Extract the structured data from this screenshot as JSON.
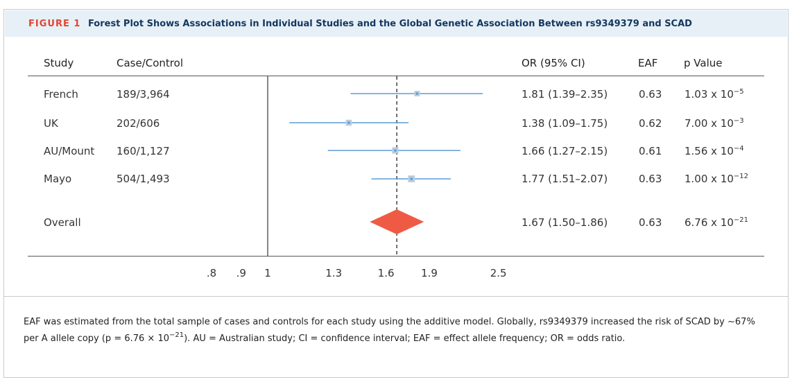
{
  "figure": {
    "label": "FIGURE 1",
    "title": "Forest Plot Shows Associations in Individual Studies and the Global Genetic Association Between rs9349379 and SCAD"
  },
  "columns": {
    "study": "Study",
    "case_control": "Case/Control",
    "or_ci": "OR (95% CI)",
    "eaf": "EAF",
    "p_value": "p Value"
  },
  "rows": [
    {
      "study": "French",
      "case_control": "189/3,964",
      "or_text": "1.81 (1.39–2.35)",
      "eaf": "0.63",
      "p_base": "1.03 x 10",
      "p_exp": "−5"
    },
    {
      "study": "UK",
      "case_control": "202/606",
      "or_text": "1.38 (1.09–1.75)",
      "eaf": "0.62",
      "p_base": "7.00 x 10",
      "p_exp": "−3"
    },
    {
      "study": "AU/Mount",
      "case_control": "160/1,127",
      "or_text": "1.66 (1.27–2.15)",
      "eaf": "0.61",
      "p_base": "1.56 x 10",
      "p_exp": "−4"
    },
    {
      "study": "Mayo",
      "case_control": "504/1,493",
      "or_text": "1.77 (1.51–2.07)",
      "eaf": "0.63",
      "p_base": "1.00 x 10",
      "p_exp": "−12"
    },
    {
      "study": "Overall",
      "case_control": "",
      "or_text": "1.67 (1.50–1.86)",
      "eaf": "0.63",
      "p_base": "6.76 x 10",
      "p_exp": "−21"
    }
  ],
  "chart_data": {
    "type": "forest",
    "xscale": "log",
    "reference_line": 1,
    "dashed_line": 1.67,
    "xticks": [
      ".8",
      ".9",
      "1",
      "1.3",
      "1.6",
      "1.9",
      "2.5"
    ],
    "xtick_values": [
      0.8,
      0.9,
      1,
      1.3,
      1.6,
      1.9,
      2.5
    ],
    "studies": [
      {
        "name": "French",
        "or": 1.81,
        "lo": 1.39,
        "hi": 2.35
      },
      {
        "name": "UK",
        "or": 1.38,
        "lo": 1.09,
        "hi": 1.75
      },
      {
        "name": "AU/Mount",
        "or": 1.66,
        "lo": 1.27,
        "hi": 2.15
      },
      {
        "name": "Mayo",
        "or": 1.77,
        "lo": 1.51,
        "hi": 2.07
      }
    ],
    "overall": {
      "name": "Overall",
      "or": 1.67,
      "lo": 1.5,
      "hi": 1.86
    },
    "colors": {
      "ci_line": "#5b9bd5",
      "square": "#b9cde0",
      "diamond": "#ef5a45",
      "axis": "#444444"
    }
  },
  "caption": {
    "part1": "EAF was estimated from the total sample of cases and controls for each study using the additive model. Globally, rs9349379 increased the risk of SCAD by ",
    "approx": "∼67%",
    "part2": " per A allele copy (p = 6.76 × 10",
    "exp": "−21",
    "part3": "). AU = Australian study; CI = confidence interval; EAF = effect allele frequency; OR = odds ratio."
  }
}
